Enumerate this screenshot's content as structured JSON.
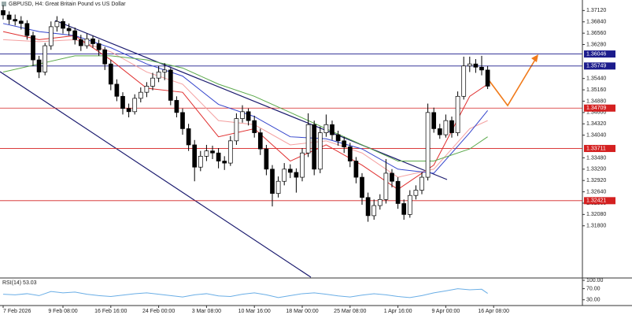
{
  "chart_data": {
    "type": "candlestick",
    "title": "GBPUSD, H4:  Great Britain Pound vs US Dollar",
    "ohlc": [
      [
        1.3712,
        1.3725,
        1.369,
        1.3701
      ],
      [
        1.3701,
        1.371,
        1.3678,
        1.369
      ],
      [
        1.369,
        1.3702,
        1.3675,
        1.3686
      ],
      [
        1.3686,
        1.3698,
        1.3665,
        1.368
      ],
      [
        1.368,
        1.3688,
        1.364,
        1.365
      ],
      [
        1.365,
        1.366,
        1.3575,
        1.359
      ],
      [
        1.359,
        1.36,
        1.3545,
        1.356
      ],
      [
        1.356,
        1.3632,
        1.3552,
        1.3625
      ],
      [
        1.3625,
        1.3685,
        1.3615,
        1.3672
      ],
      [
        1.3672,
        1.3698,
        1.366,
        1.3685
      ],
      [
        1.3685,
        1.3692,
        1.3655,
        1.3668
      ],
      [
        1.3668,
        1.368,
        1.365,
        1.3662
      ],
      [
        1.3662,
        1.367,
        1.3628,
        1.364
      ],
      [
        1.364,
        1.3652,
        1.3612,
        1.3625
      ],
      [
        1.3625,
        1.3655,
        1.3618,
        1.3642
      ],
      [
        1.3642,
        1.365,
        1.362,
        1.363
      ],
      [
        1.363,
        1.364,
        1.36,
        1.3615
      ],
      [
        1.3615,
        1.3622,
        1.3565,
        1.358
      ],
      [
        1.358,
        1.359,
        1.3515,
        1.353
      ],
      [
        1.353,
        1.3542,
        1.3488,
        1.35
      ],
      [
        1.35,
        1.351,
        1.3455,
        1.347
      ],
      [
        1.347,
        1.3482,
        1.3448,
        1.3462
      ],
      [
        1.3462,
        1.3505,
        1.3455,
        1.3495
      ],
      [
        1.3495,
        1.3522,
        1.3485,
        1.351
      ],
      [
        1.351,
        1.3535,
        1.3498,
        1.3525
      ],
      [
        1.3525,
        1.3558,
        1.3515,
        1.3545
      ],
      [
        1.3545,
        1.3575,
        1.3535,
        1.356
      ],
      [
        1.356,
        1.3582,
        1.354,
        1.3565
      ],
      [
        1.3565,
        1.357,
        1.3478,
        1.349
      ],
      [
        1.349,
        1.35,
        1.3448,
        1.346
      ],
      [
        1.346,
        1.347,
        1.3405,
        1.342
      ],
      [
        1.342,
        1.3432,
        1.3365,
        1.338
      ],
      [
        1.338,
        1.3392,
        1.329,
        1.3325
      ],
      [
        1.3325,
        1.3365,
        1.3315,
        1.3352
      ],
      [
        1.3352,
        1.338,
        1.334,
        1.3365
      ],
      [
        1.3365,
        1.3378,
        1.3345,
        1.336
      ],
      [
        1.336,
        1.3372,
        1.3322,
        1.334
      ],
      [
        1.334,
        1.3352,
        1.3318,
        1.3335
      ],
      [
        1.3335,
        1.3402,
        1.3328,
        1.339
      ],
      [
        1.339,
        1.3458,
        1.338,
        1.3445
      ],
      [
        1.3445,
        1.3478,
        1.3435,
        1.3462
      ],
      [
        1.3462,
        1.347,
        1.3428,
        1.344
      ],
      [
        1.344,
        1.3452,
        1.3398,
        1.341
      ],
      [
        1.341,
        1.342,
        1.3355,
        1.337
      ],
      [
        1.337,
        1.338,
        1.3305,
        1.332
      ],
      [
        1.332,
        1.333,
        1.3228,
        1.326
      ],
      [
        1.326,
        1.3302,
        1.325,
        1.329
      ],
      [
        1.329,
        1.3335,
        1.328,
        1.332
      ],
      [
        1.332,
        1.3332,
        1.3298,
        1.3312
      ],
      [
        1.3312,
        1.3322,
        1.3262,
        1.33
      ],
      [
        1.33,
        1.3372,
        1.329,
        1.336
      ],
      [
        1.336,
        1.3458,
        1.335,
        1.343
      ],
      [
        1.343,
        1.344,
        1.3305,
        1.332
      ],
      [
        1.332,
        1.3425,
        1.331,
        1.341
      ],
      [
        1.341,
        1.3455,
        1.34,
        1.343
      ],
      [
        1.343,
        1.344,
        1.3392,
        1.3405
      ],
      [
        1.3405,
        1.3415,
        1.3378,
        1.339
      ],
      [
        1.339,
        1.34,
        1.336,
        1.3375
      ],
      [
        1.3375,
        1.3385,
        1.3325,
        1.334
      ],
      [
        1.334,
        1.335,
        1.3285,
        1.33
      ],
      [
        1.33,
        1.331,
        1.3232,
        1.325
      ],
      [
        1.325,
        1.3262,
        1.319,
        1.3205
      ],
      [
        1.3205,
        1.3245,
        1.3195,
        1.323
      ],
      [
        1.323,
        1.3258,
        1.322,
        1.3245
      ],
      [
        1.3245,
        1.3345,
        1.3235,
        1.331
      ],
      [
        1.331,
        1.332,
        1.3275,
        1.329
      ],
      [
        1.329,
        1.33,
        1.3222,
        1.3235
      ],
      [
        1.3235,
        1.3245,
        1.3195,
        1.3208
      ],
      [
        1.3208,
        1.3268,
        1.32,
        1.3255
      ],
      [
        1.3255,
        1.328,
        1.3245,
        1.3268
      ],
      [
        1.3268,
        1.3312,
        1.3258,
        1.33
      ],
      [
        1.33,
        1.3482,
        1.3292,
        1.346
      ],
      [
        1.346,
        1.3472,
        1.341,
        1.342
      ],
      [
        1.342,
        1.3432,
        1.3395,
        1.3405
      ],
      [
        1.3405,
        1.3455,
        1.3398,
        1.344
      ],
      [
        1.344,
        1.345,
        1.3398,
        1.341
      ],
      [
        1.341,
        1.3512,
        1.3402,
        1.35
      ],
      [
        1.35,
        1.3598,
        1.3492,
        1.3575
      ],
      [
        1.3575,
        1.3598,
        1.356,
        1.358
      ],
      [
        1.358,
        1.3592,
        1.3558,
        1.3572
      ],
      [
        1.3572,
        1.36,
        1.3552,
        1.3565
      ],
      [
        1.3565,
        1.3575,
        1.3518,
        1.3525
      ]
    ],
    "series": [
      {
        "color": "#e03030",
        "x": [
          0,
          6,
          12,
          18,
          24,
          30,
          36,
          42,
          48,
          54,
          60,
          66,
          72,
          78,
          81
        ],
        "values": [
          1.366,
          1.364,
          1.365,
          1.359,
          1.352,
          1.351,
          1.34,
          1.342,
          1.334,
          1.338,
          1.333,
          1.327,
          1.333,
          1.35,
          1.353
        ]
      },
      {
        "color": "#f4a0a0",
        "x": [
          0,
          6,
          12,
          18,
          24,
          30,
          36,
          42,
          48,
          54,
          60,
          66,
          72,
          78,
          81
        ],
        "values": [
          1.364,
          1.3635,
          1.364,
          1.361,
          1.356,
          1.353,
          1.344,
          1.343,
          1.338,
          1.339,
          1.336,
          1.33,
          1.332,
          1.342,
          1.344
        ]
      },
      {
        "color": "#3344cc",
        "x": [
          0,
          6,
          12,
          18,
          24,
          30,
          36,
          42,
          48,
          54,
          60,
          66,
          72,
          78,
          81
        ],
        "values": [
          1.368,
          1.366,
          1.365,
          1.362,
          1.358,
          1.355,
          1.348,
          1.345,
          1.34,
          1.3395,
          1.337,
          1.332,
          1.331,
          1.341,
          1.3465
        ]
      },
      {
        "color": "#5aa84a",
        "x": [
          0,
          6,
          12,
          18,
          24,
          30,
          36,
          42,
          48,
          54,
          60,
          66,
          72,
          78,
          81
        ],
        "values": [
          1.356,
          1.358,
          1.36,
          1.36,
          1.359,
          1.357,
          1.353,
          1.35,
          1.346,
          1.342,
          1.338,
          1.334,
          1.334,
          1.337,
          1.34
        ]
      }
    ],
    "levels": [
      {
        "value": 1.36046,
        "color": "#1c1c8c"
      },
      {
        "value": 1.35749,
        "color": "#1c1c8c"
      },
      {
        "value": 1.34709,
        "color": "#d42020"
      },
      {
        "value": 1.33711,
        "color": "#d42020"
      },
      {
        "value": 1.32421,
        "color": "#d42020"
      }
    ],
    "ylim": [
      1.3053,
      1.3738
    ],
    "yticks": [
      {
        "value": 1.3712,
        "label": "1.37120"
      },
      {
        "value": 1.3684,
        "label": "1.36840"
      },
      {
        "value": 1.3656,
        "label": "1.36560"
      },
      {
        "value": 1.3628,
        "label": "1.36280"
      },
      {
        "value": 1.3544,
        "label": "1.35440"
      },
      {
        "value": 1.3516,
        "label": "1.35160"
      },
      {
        "value": 1.3488,
        "label": "1.34880"
      },
      {
        "value": 1.346,
        "label": "1.34600"
      },
      {
        "value": 1.3432,
        "label": "1.34320"
      },
      {
        "value": 1.3404,
        "label": "1.34040"
      },
      {
        "value": 1.3348,
        "label": "1.33480"
      },
      {
        "value": 1.332,
        "label": "1.33200"
      },
      {
        "value": 1.3292,
        "label": "1.32920"
      },
      {
        "value": 1.3264,
        "label": "1.32640"
      },
      {
        "value": 1.3236,
        "label": "1.32360"
      },
      {
        "value": 1.3208,
        "label": "1.32080"
      },
      {
        "value": 1.318,
        "label": "1.31800"
      }
    ],
    "xticks": [
      {
        "value": 0,
        "label": "7 Feb 2026"
      },
      {
        "value": 10,
        "label": "9 Feb 08:00"
      },
      {
        "value": 18,
        "label": "16 Feb 16:00"
      },
      {
        "value": 26,
        "label": "24 Feb 00:00"
      },
      {
        "value": 34,
        "label": "3 Mar 08:00"
      },
      {
        "value": 42,
        "label": "10 Mar 16:00"
      },
      {
        "value": 50,
        "label": "18 Mar 00:00"
      },
      {
        "value": 58,
        "label": "25 Mar 08:00"
      },
      {
        "value": 66,
        "label": "1 Apr 16:00"
      },
      {
        "value": 74,
        "label": "9 Apr 00:00"
      },
      {
        "value": 82,
        "label": "16 Apr 08:00"
      }
    ],
    "rsi": {
      "label": "RSI(14) 53.03",
      "color": "#6aaee6",
      "x": [
        0,
        2,
        4,
        6,
        8,
        10,
        12,
        14,
        16,
        18,
        20,
        22,
        24,
        26,
        28,
        30,
        32,
        34,
        36,
        38,
        40,
        42,
        44,
        46,
        48,
        50,
        52,
        54,
        56,
        58,
        60,
        62,
        64,
        66,
        68,
        70,
        72,
        74,
        76,
        78,
        80,
        81
      ],
      "values": [
        50,
        48,
        52,
        45,
        60,
        55,
        58,
        50,
        45,
        42,
        47,
        52,
        55,
        50,
        45,
        40,
        48,
        52,
        44,
        42,
        50,
        55,
        48,
        38,
        45,
        52,
        55,
        50,
        44,
        40,
        47,
        52,
        48,
        42,
        38,
        45,
        55,
        62,
        70,
        66,
        68,
        53.03
      ],
      "ylim": [
        15,
        100
      ],
      "yticks": [
        {
          "value": 100,
          "label": "100.00"
        },
        {
          "value": 70,
          "label": "70.00"
        },
        {
          "value": 30,
          "label": "30.00"
        }
      ]
    }
  }
}
